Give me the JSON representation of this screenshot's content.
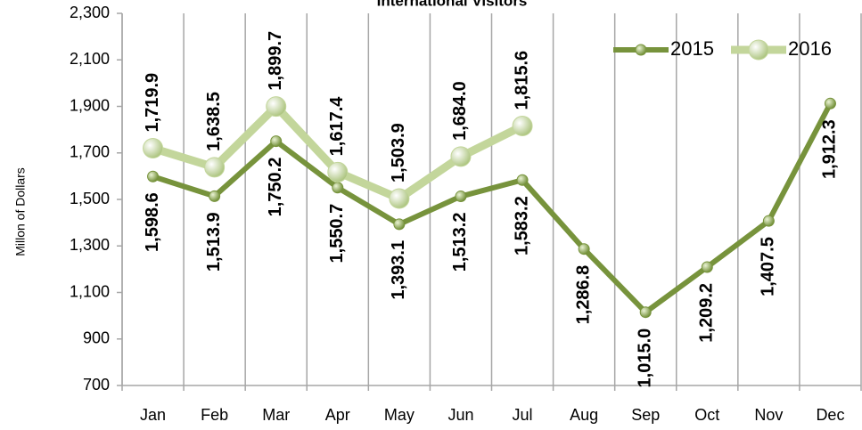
{
  "chart_data": {
    "type": "line",
    "title": "International Visitors",
    "y_label": "Millon of Dollars",
    "categories": [
      "Jan",
      "Feb",
      "Mar",
      "Apr",
      "May",
      "Jun",
      "Jul",
      "Aug",
      "Sep",
      "Oct",
      "Nov",
      "Dec"
    ],
    "series": [
      {
        "name": "2015",
        "color": "#77933c",
        "values": [
          1598.6,
          1513.9,
          1750.2,
          1550.7,
          1393.1,
          1513.2,
          1583.2,
          1286.8,
          1015.0,
          1209.2,
          1407.5,
          1912.3
        ],
        "value_labels": [
          "1,598.6",
          "1,513.9",
          "1,750.2",
          "1,550.7",
          "1,393.1",
          "1,513.2",
          "1,583.2",
          "1,286.8",
          "1,015.0",
          "1,209.2",
          "1,407.5",
          "1,912.3"
        ]
      },
      {
        "name": "2016",
        "color": "#c3d69b",
        "values": [
          1719.9,
          1638.5,
          1899.7,
          1617.4,
          1503.9,
          1684.0,
          1815.6,
          null,
          null,
          null,
          null,
          null
        ],
        "value_labels": [
          "1,719.9",
          "1,638.5",
          "1,899.7",
          "1,617.4",
          "1,503.9",
          "1,684.0",
          "1,815.6",
          null,
          null,
          null,
          null,
          null
        ]
      }
    ],
    "ylim": [
      700,
      2300
    ],
    "yticks": [
      {
        "value": 700,
        "label": "700"
      },
      {
        "value": 900,
        "label": "900"
      },
      {
        "value": 1100,
        "label": "1,100"
      },
      {
        "value": 1300,
        "label": "1,300"
      },
      {
        "value": 1500,
        "label": "1,500"
      },
      {
        "value": 1700,
        "label": "1,700"
      },
      {
        "value": 1900,
        "label": "1,900"
      },
      {
        "value": 2100,
        "label": "2,100"
      },
      {
        "value": 2300,
        "label": "2,300"
      }
    ],
    "legend": "upper right",
    "grid": "vertical"
  }
}
